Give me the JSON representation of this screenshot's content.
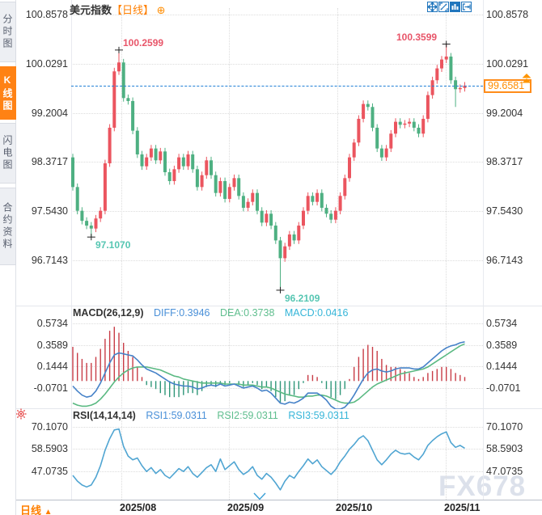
{
  "sidebar": {
    "items": [
      {
        "label": "分时图",
        "active": false
      },
      {
        "label": "K线图",
        "active": true
      },
      {
        "label": "闪电图",
        "active": false
      },
      {
        "label": "合约资料",
        "active": false
      }
    ]
  },
  "header": {
    "title": "美元指数",
    "period_tag": "【日线】",
    "add_icon": "⊕",
    "toolbar_icons": [
      "crosshair",
      "fit-scale",
      "chart-style",
      "exit-view"
    ]
  },
  "current_price": {
    "value": "99.6581"
  },
  "bottom": {
    "period": "日线",
    "period_arrow": "▲",
    "dates": [
      "2025/08",
      "2025/09",
      "2025/10",
      "2025/11"
    ]
  },
  "watermark": "FX678",
  "macd_header": {
    "title": "MACD(26,12,9)",
    "diff": "DIFF:0.3946",
    "dea": "DEA:0.3738",
    "macd": "MACD:0.0416"
  },
  "rsi_header": {
    "title": "RSI(14,14,14)",
    "rsi1": "RSI1:59.0311",
    "rsi2": "RSI2:59.0311",
    "rsi3": "RSI3:59.0311"
  },
  "colors": {
    "up": "#eb555f",
    "down": "#4eb082",
    "hist_up": "#c83c46",
    "hist_down": "#2e9678",
    "diff_line": "#4682c8",
    "dea_line": "#5ab982",
    "rsi_line": "#50a5d2",
    "accent_orange": "#ff7f00",
    "dashed_line": "#1f7fd6",
    "anno_high": "#e85569",
    "anno_low": "#56c6b2"
  },
  "chart_data": {
    "type": "candlestick",
    "title": "美元指数 日线",
    "price_axis_labels": [
      "100.8578",
      "100.0291",
      "99.2004",
      "98.3717",
      "97.5430",
      "96.7143"
    ],
    "current_price": 99.6581,
    "date_gridlines": [
      "2025/08",
      "2025/09",
      "2025/10",
      "2025/11"
    ],
    "date_gridline_indices": [
      10.5,
      33.9,
      57.4,
      80.9
    ],
    "first_open": 98.45,
    "closes": [
      97.95,
      97.55,
      97.38,
      97.3,
      97.25,
      97.42,
      97.55,
      98.35,
      98.95,
      99.9,
      100.05,
      99.45,
      99.4,
      98.9,
      98.5,
      98.3,
      98.45,
      98.6,
      98.4,
      98.55,
      98.2,
      98.05,
      98.25,
      98.45,
      98.3,
      98.5,
      98.25,
      97.95,
      98.15,
      98.4,
      98.15,
      97.85,
      98.05,
      97.75,
      97.95,
      98.1,
      97.8,
      97.6,
      97.7,
      97.85,
      97.55,
      97.35,
      97.5,
      97.3,
      97.05,
      96.75,
      96.95,
      97.15,
      97.05,
      97.3,
      97.55,
      97.8,
      97.7,
      97.85,
      97.6,
      97.5,
      97.4,
      97.55,
      97.8,
      98.1,
      98.45,
      98.7,
      99.1,
      99.35,
      99.3,
      98.95,
      98.6,
      98.45,
      98.6,
      98.85,
      99.05,
      99.0,
      99.02,
      99.05,
      98.95,
      98.85,
      99.1,
      99.5,
      99.75,
      99.95,
      100.1,
      100.15,
      99.75,
      99.6,
      99.62,
      99.66
    ],
    "wick_overrides": {
      "4": {
        "low": 97.107
      },
      "10": {
        "high": 100.2599
      },
      "45": {
        "low": 96.2109
      },
      "81": {
        "high": 100.3599
      },
      "83": {
        "low": 99.3
      }
    },
    "marks": [
      {
        "i": 10,
        "price": 100.2599,
        "label": "100.2599",
        "kind": "high",
        "side": "right"
      },
      {
        "i": 81,
        "price": 100.3599,
        "label": "100.3599",
        "kind": "high",
        "side": "left"
      },
      {
        "i": 4,
        "price": 97.107,
        "label": "97.1070",
        "kind": "low",
        "side": "right"
      },
      {
        "i": 45,
        "price": 96.2109,
        "label": "96.2109",
        "kind": "low",
        "side": "right"
      }
    ],
    "macd": {
      "axis_labels": [
        "0.5734",
        "0.3589",
        "0.1444",
        "-0.0701"
      ],
      "latest": {
        "diff": 0.3946,
        "dea": 0.3738,
        "macd": 0.0416
      },
      "hist_rule": "2*(diff-dea)",
      "diff": [
        -0.05,
        -0.1,
        -0.14,
        -0.16,
        -0.15,
        -0.1,
        -0.02,
        0.08,
        0.18,
        0.26,
        0.28,
        0.27,
        0.26,
        0.25,
        0.21,
        0.16,
        0.12,
        0.1,
        0.08,
        0.05,
        0.02,
        -0.01,
        -0.03,
        -0.04,
        -0.05,
        -0.05,
        -0.06,
        -0.08,
        -0.07,
        -0.05,
        -0.04,
        -0.05,
        -0.03,
        -0.05,
        -0.04,
        -0.03,
        -0.05,
        -0.07,
        -0.06,
        -0.05,
        -0.07,
        -0.1,
        -0.09,
        -0.12,
        -0.17,
        -0.22,
        -0.23,
        -0.21,
        -0.22,
        -0.2,
        -0.17,
        -0.12,
        -0.12,
        -0.12,
        -0.15,
        -0.19,
        -0.25,
        -0.28,
        -0.28,
        -0.26,
        -0.21,
        -0.14,
        -0.06,
        0.02,
        0.08,
        0.11,
        0.12,
        0.1,
        0.09,
        0.1,
        0.12,
        0.13,
        0.13,
        0.13,
        0.12,
        0.12,
        0.14,
        0.18,
        0.22,
        0.26,
        0.3,
        0.33,
        0.35,
        0.36,
        0.38,
        0.39
      ],
      "dea": [
        -0.22,
        -0.24,
        -0.25,
        -0.25,
        -0.24,
        -0.22,
        -0.18,
        -0.13,
        -0.07,
        -0.01,
        0.04,
        0.08,
        0.11,
        0.13,
        0.14,
        0.14,
        0.14,
        0.13,
        0.12,
        0.11,
        0.09,
        0.07,
        0.05,
        0.04,
        0.02,
        0.01,
        0.0,
        -0.01,
        -0.02,
        -0.02,
        -0.02,
        -0.02,
        -0.02,
        -0.03,
        -0.03,
        -0.03,
        -0.03,
        -0.04,
        -0.04,
        -0.04,
        -0.05,
        -0.06,
        -0.06,
        -0.07,
        -0.09,
        -0.11,
        -0.13,
        -0.14,
        -0.15,
        -0.16,
        -0.16,
        -0.15,
        -0.15,
        -0.14,
        -0.14,
        -0.15,
        -0.17,
        -0.19,
        -0.21,
        -0.22,
        -0.22,
        -0.21,
        -0.18,
        -0.14,
        -0.1,
        -0.06,
        -0.03,
        -0.01,
        0.01,
        0.03,
        0.05,
        0.07,
        0.08,
        0.09,
        0.1,
        0.11,
        0.12,
        0.14,
        0.17,
        0.2,
        0.23,
        0.26,
        0.29,
        0.32,
        0.35,
        0.37
      ]
    },
    "rsi": {
      "axis_labels": [
        "70.1070",
        "58.5903",
        "47.0735"
      ],
      "latest": {
        "rsi1": 59.0311,
        "rsi2": 59.0311,
        "rsi3": 59.0311
      },
      "values": [
        45,
        42,
        40,
        39,
        40,
        44,
        50,
        58,
        64,
        68.5,
        69,
        60,
        55,
        53,
        54,
        50,
        47,
        49,
        46,
        48,
        45,
        43.5,
        46,
        48.5,
        47,
        49.5,
        46,
        44,
        46.5,
        49,
        50.5,
        47,
        53.5,
        48,
        50,
        52,
        48,
        45.5,
        47,
        49.5,
        45,
        43,
        46,
        44,
        41,
        37.5,
        42,
        45,
        43.5,
        47,
        50,
        53.5,
        51,
        53,
        49.5,
        47.5,
        45.5,
        48,
        52,
        55,
        58.5,
        61,
        64,
        65.5,
        63,
        58,
        53,
        50.5,
        53,
        56,
        58,
        56.5,
        56,
        56.5,
        54.5,
        53,
        56,
        60.5,
        63,
        65,
        66.5,
        67.5,
        62,
        59.5,
        60.5,
        59.03
      ]
    }
  }
}
